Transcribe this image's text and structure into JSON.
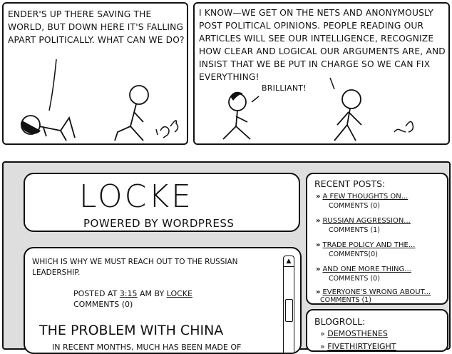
{
  "comic": {
    "panel1": {
      "text": "ENDER'S UP THERE SAVING THE WORLD, BUT DOWN HERE IT'S FALLING APART POLITICALLY. WHAT CAN WE DO?"
    },
    "panel2": {
      "text": "I KNOW—WE GET ON THE NETS AND ANONYMOUSLY POST POLITICAL OPINIONS. PEOPLE READING OUR ARTICLES WILL SEE OUR INTELLIGENCE, RECOGNIZE HOW CLEAR AND LOGICAL OUR ARGUMENTS ARE, AND INSIST THAT WE BE PUT IN CHARGE SO WE CAN FIX EVERYTHING!",
      "reply": "BRILLIANT!"
    }
  },
  "site": {
    "logo": "LOCKE",
    "tagline": "POWERED BY WORDPRESS",
    "post": {
      "intro": "WHICH IS WHY WE MUST REACH OUT TO THE RUSSIAN LEADERSHIP.",
      "posted_prefix": "POSTED AT",
      "time": "3:15",
      "ampm": "AM BY",
      "author": "LOCKE",
      "comments": "COMMENTS (0)",
      "title": "THE PROBLEM WITH CHINA",
      "body_start": "IN RECENT MONTHS, MUCH HAS BEEN MADE OF"
    },
    "scroll_up_glyph": "▲",
    "recent_posts": {
      "title": "RECENT POSTS:",
      "items": [
        {
          "label": "A FEW THOUGHTS ON...",
          "comments": "COMMENTS (0)"
        },
        {
          "label": "RUSSIAN AGGRESSION...",
          "comments": "COMMENTS (1)"
        },
        {
          "label": "TRADE POLICY AND THE...",
          "comments": "COMMENTS(0)"
        },
        {
          "label": "AND ONE MORE THING...",
          "comments": "COMMENTS (0)"
        },
        {
          "label": "EVERYONE'S WRONG ABOUT...",
          "comments": "COMMENTS (1)"
        }
      ]
    },
    "blogroll": {
      "title": "BLOGROLL:",
      "items": [
        "DEMOSTHENES",
        "FIVETHIRTYEIGHT"
      ]
    },
    "arrow_glyph": "»"
  }
}
